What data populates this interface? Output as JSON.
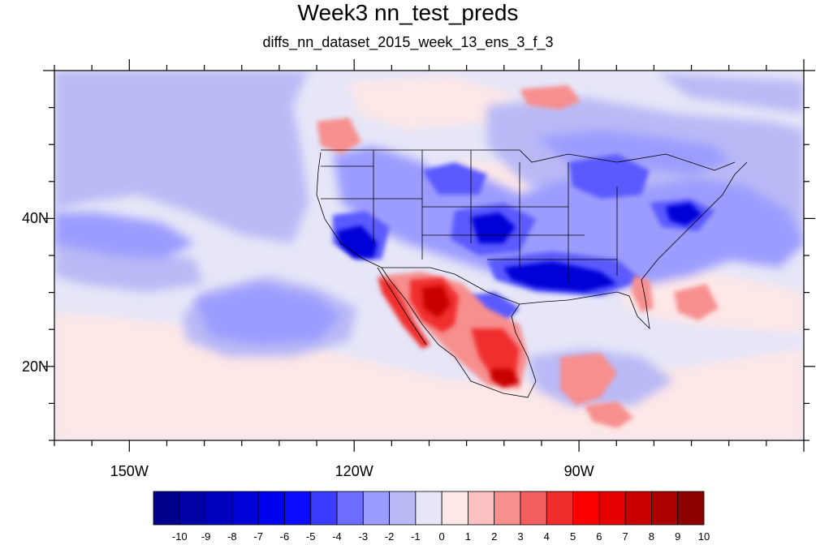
{
  "title": "Week3 nn_test_preds",
  "subtitle": "diffs_nn_dataset_2015_week_13_ens_3_f_3",
  "map": {
    "lon_range": [
      -160,
      -60
    ],
    "lat_range": [
      10,
      60
    ],
    "lon_tick_labels": [
      {
        "lon": -150,
        "label": "150W"
      },
      {
        "lon": -120,
        "label": "120W"
      },
      {
        "lon": -90,
        "label": "90W"
      }
    ],
    "lat_tick_labels": [
      {
        "lat": 40,
        "label": "40N"
      },
      {
        "lat": 20,
        "label": "20N"
      }
    ]
  },
  "colorbar": {
    "labels": [
      "-10",
      "-9",
      "-8",
      "-7",
      "-6",
      "-5",
      "-4",
      "-3",
      "-2",
      "-1",
      "0",
      "1",
      "2",
      "3",
      "4",
      "5",
      "6",
      "7",
      "8",
      "9",
      "10"
    ],
    "colors": [
      "#00008c",
      "#0000a5",
      "#0000be",
      "#0000d7",
      "#0000f0",
      "#0b0bff",
      "#3c3cff",
      "#6c6cff",
      "#9c9cff",
      "#b9b9f6",
      "#e6e6f8",
      "#fde7e7",
      "#fbc0c0",
      "#f78f8f",
      "#f35e5e",
      "#f02d2d",
      "#fc0000",
      "#e60000",
      "#c80000",
      "#aa0000",
      "#8c0000"
    ]
  }
}
